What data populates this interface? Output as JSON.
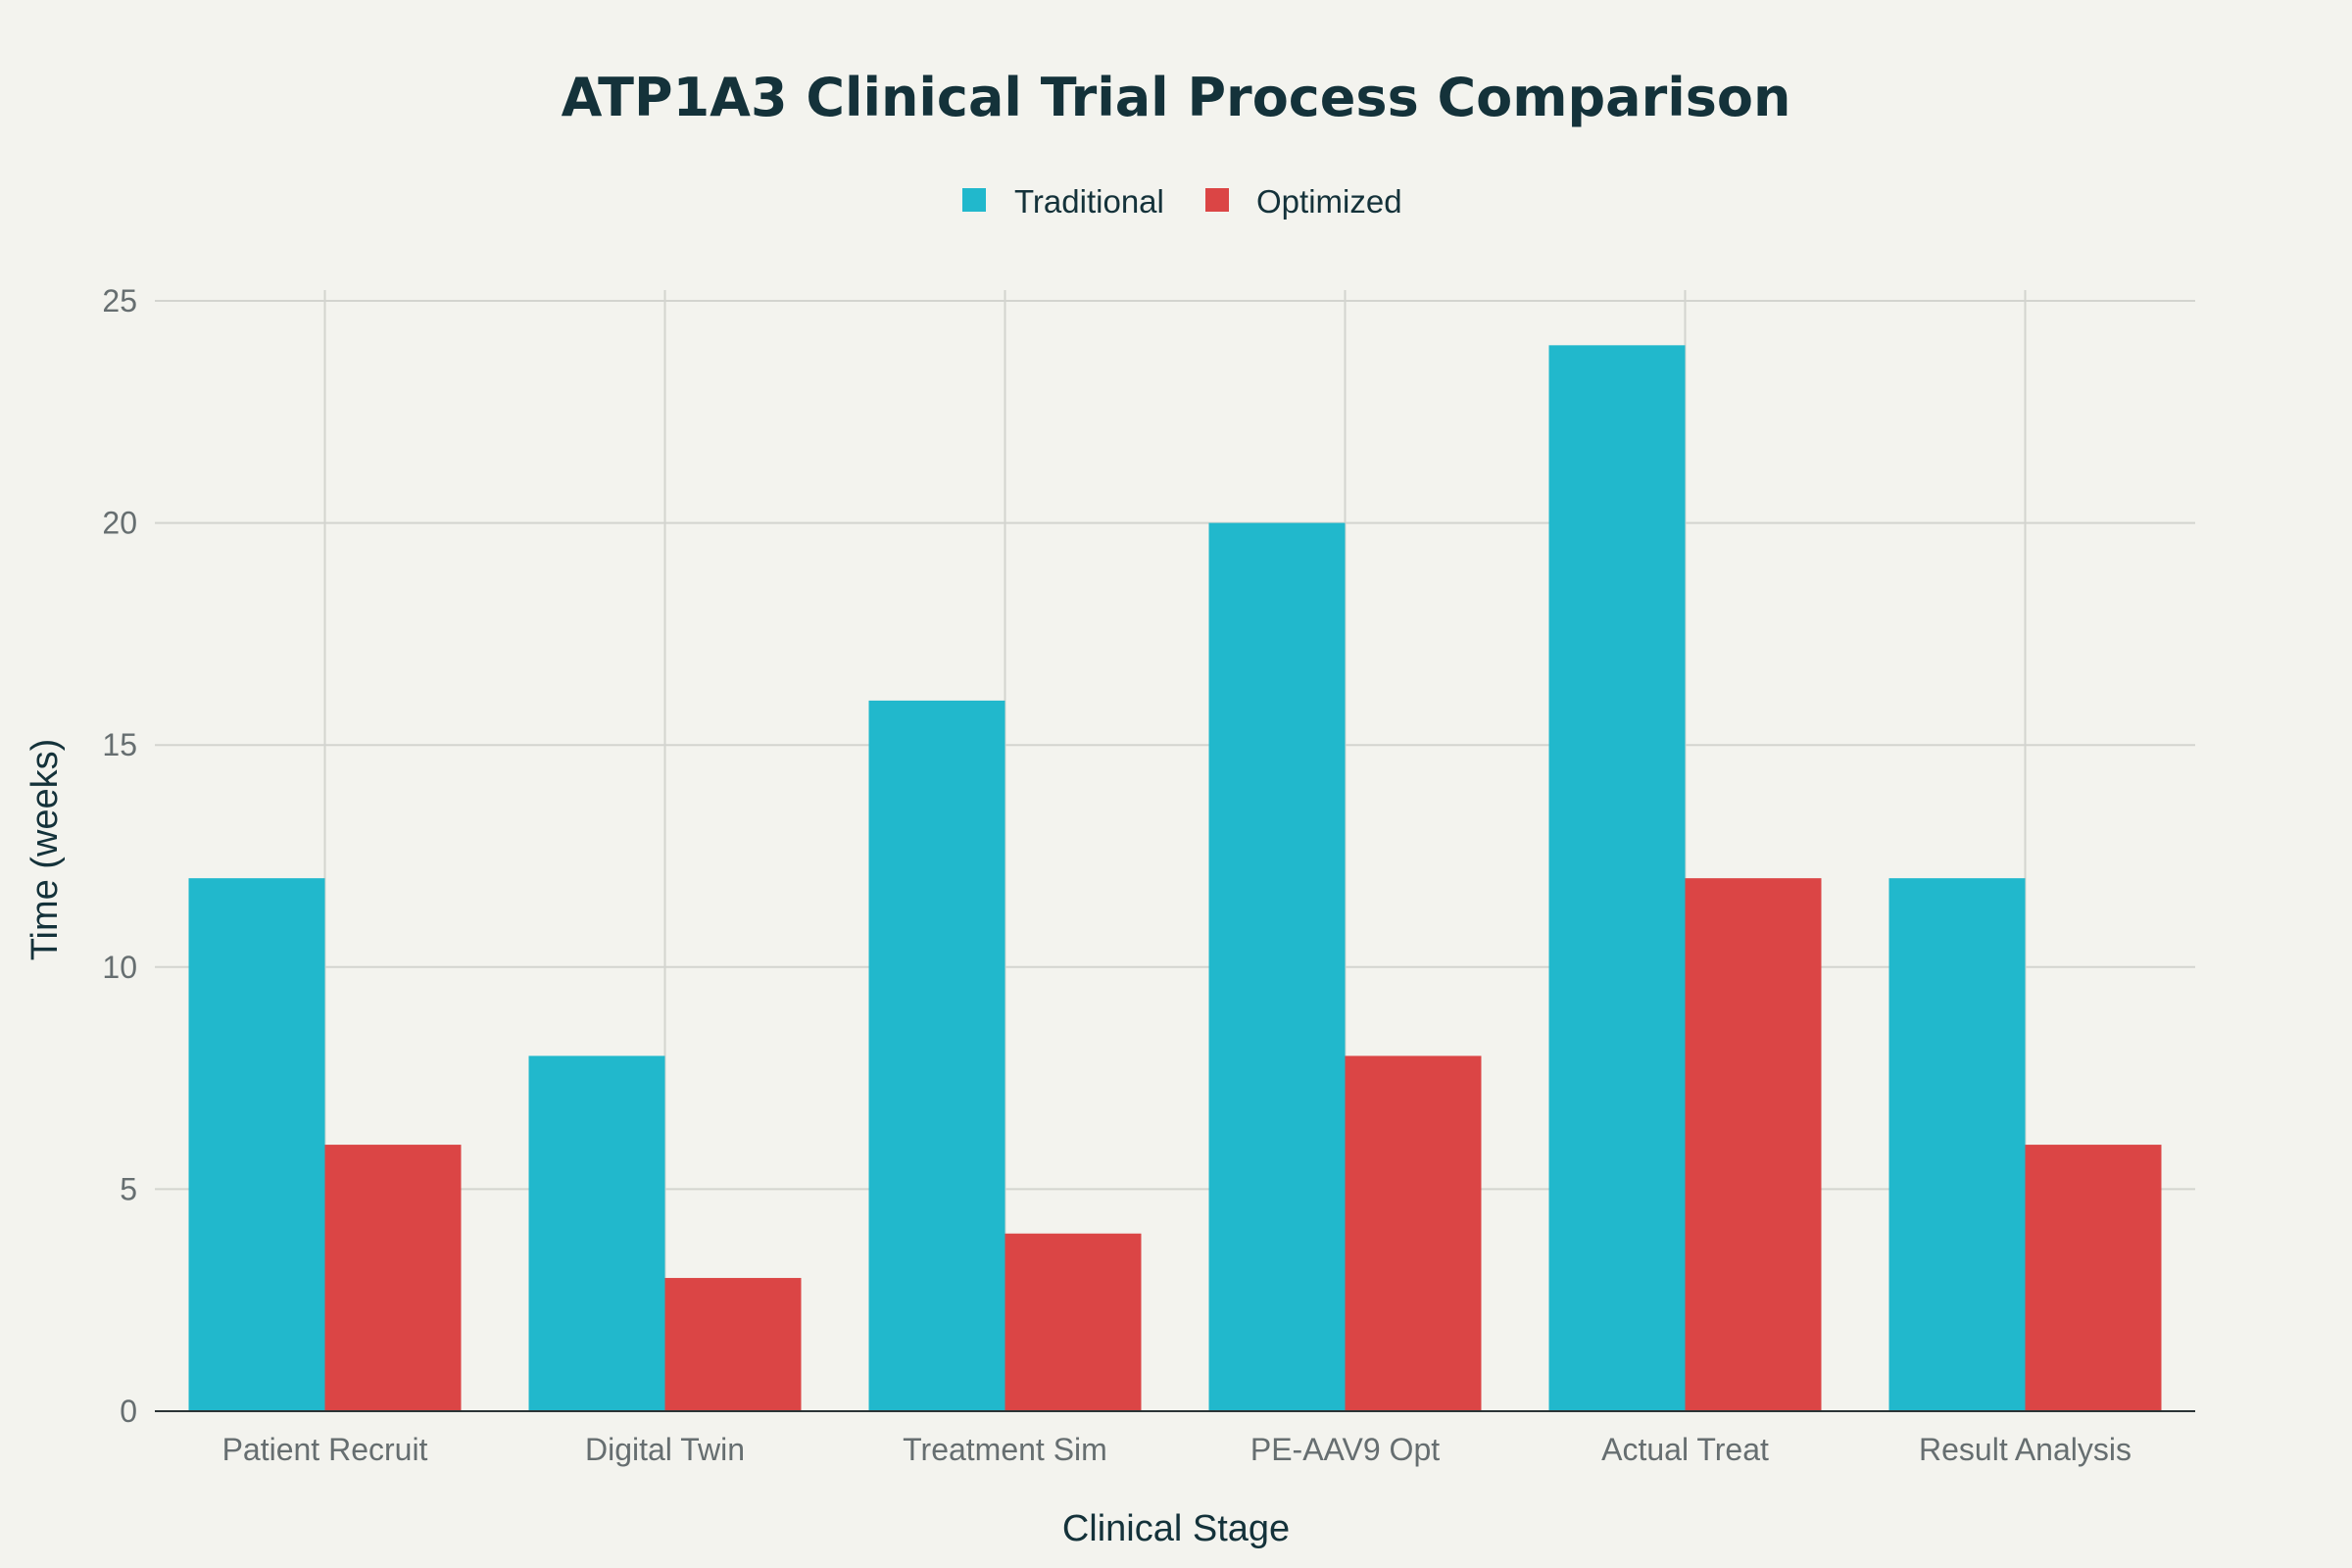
{
  "chart_data": {
    "type": "bar",
    "title": "ATP1A3 Clinical Trial Process Comparison",
    "xlabel": "Clinical Stage",
    "ylabel": "Time (weeks)",
    "categories": [
      "Patient Recruit",
      "Digital Twin",
      "Treatment Sim",
      "PE-AAV9 Opt",
      "Actual Treat",
      "Result Analysis"
    ],
    "series": [
      {
        "name": "Traditional",
        "color": "#21b8cc",
        "values": [
          12,
          8,
          16,
          20,
          24,
          12
        ]
      },
      {
        "name": "Optimized",
        "color": "#db4545",
        "values": [
          6,
          3,
          4,
          8,
          12,
          6
        ]
      }
    ],
    "ylim": [
      0,
      25
    ],
    "yticks": [
      0,
      5,
      10,
      15,
      20,
      25
    ],
    "grid": true,
    "legend_position": "top-center"
  }
}
